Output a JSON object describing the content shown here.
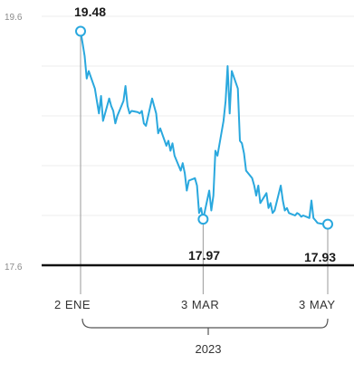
{
  "chart_data": {
    "type": "line",
    "title": "",
    "xlabel": "2023",
    "ylabel": "",
    "ylim": [
      17.6,
      19.6
    ],
    "y_ticks": [
      "19.6",
      "17.6"
    ],
    "x_ticks": [
      {
        "label": "2 ENE",
        "x": "2023-01-02"
      },
      {
        "label": "3 MAR",
        "x": "2023-03-03"
      },
      {
        "label": "3 MAY",
        "x": "2023-05-03"
      }
    ],
    "year_label": "2023",
    "grid": true,
    "line_color": "#2aa8de",
    "series": [
      {
        "x": [
          "2023-01-02",
          "2023-01-03",
          "2023-01-04",
          "2023-01-05",
          "2023-01-06",
          "2023-01-09",
          "2023-01-10",
          "2023-01-11",
          "2023-01-12",
          "2023-01-13",
          "2023-01-16",
          "2023-01-17",
          "2023-01-18",
          "2023-01-19",
          "2023-01-20",
          "2023-01-23",
          "2023-01-24",
          "2023-01-25",
          "2023-01-26",
          "2023-01-27",
          "2023-01-30",
          "2023-01-31",
          "2023-02-01",
          "2023-02-02",
          "2023-02-03",
          "2023-02-06",
          "2023-02-07",
          "2023-02-08",
          "2023-02-09",
          "2023-02-10",
          "2023-02-13",
          "2023-02-14",
          "2023-02-15",
          "2023-02-16",
          "2023-02-17",
          "2023-02-20",
          "2023-02-21",
          "2023-02-22",
          "2023-02-23",
          "2023-02-24",
          "2023-02-27",
          "2023-02-28",
          "2023-03-01",
          "2023-03-02",
          "2023-03-03",
          "2023-03-06",
          "2023-03-07",
          "2023-03-08",
          "2023-03-09",
          "2023-03-10",
          "2023-03-13",
          "2023-03-14",
          "2023-03-15",
          "2023-03-16",
          "2023-03-17",
          "2023-03-20",
          "2023-03-21",
          "2023-03-22",
          "2023-03-23",
          "2023-03-24",
          "2023-03-27",
          "2023-03-28",
          "2023-03-29",
          "2023-03-30",
          "2023-03-31",
          "2023-04-03",
          "2023-04-04",
          "2023-04-05",
          "2023-04-06",
          "2023-04-07",
          "2023-04-10",
          "2023-04-11",
          "2023-04-12",
          "2023-04-13",
          "2023-04-14",
          "2023-04-17",
          "2023-04-18",
          "2023-04-19",
          "2023-04-20",
          "2023-04-21",
          "2023-04-24",
          "2023-04-25",
          "2023-04-26",
          "2023-04-27",
          "2023-04-28",
          "2023-05-01",
          "2023-05-02",
          "2023-05-03"
        ],
        "y": [
          19.48,
          19.38,
          19.28,
          19.1,
          19.16,
          19.02,
          18.92,
          18.82,
          18.96,
          18.76,
          18.94,
          18.88,
          18.84,
          18.74,
          18.8,
          18.92,
          19.04,
          18.88,
          18.82,
          18.84,
          18.83,
          18.82,
          18.84,
          18.74,
          18.72,
          18.94,
          18.88,
          18.82,
          18.66,
          18.7,
          18.56,
          18.6,
          18.52,
          18.58,
          18.48,
          18.36,
          18.42,
          18.34,
          18.2,
          18.28,
          18.3,
          18.24,
          18.02,
          18.06,
          17.97,
          18.2,
          18.04,
          18.16,
          18.52,
          18.48,
          18.76,
          18.92,
          19.2,
          18.82,
          19.16,
          19.02,
          18.6,
          18.58,
          18.5,
          18.36,
          18.3,
          18.24,
          18.16,
          18.24,
          18.1,
          18.18,
          18.06,
          18.1,
          18.02,
          18.04,
          18.24,
          18.12,
          18.04,
          18.06,
          18.02,
          18.0,
          18.02,
          18.01,
          17.99,
          18.0,
          17.98,
          18.12,
          17.98,
          17.96,
          17.94,
          17.93,
          17.95,
          17.93
        ]
      }
    ],
    "annotations": [
      {
        "label": "19.48",
        "x": "2023-01-02",
        "y": 19.48
      },
      {
        "label": "17.97",
        "x": "2023-03-03",
        "y": 17.97
      },
      {
        "label": "17.93",
        "x": "2023-05-03",
        "y": 17.93
      }
    ]
  }
}
